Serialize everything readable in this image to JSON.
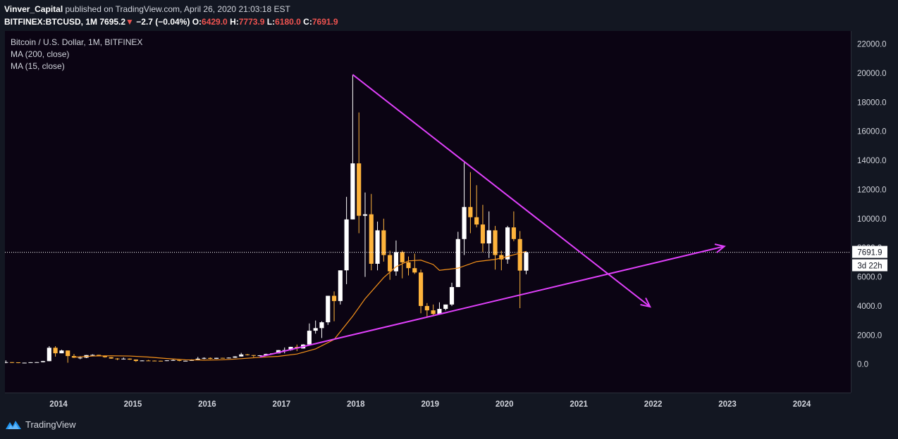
{
  "header": {
    "author": "Vinver_Capital",
    "published_text": "published on TradingView.com, April 26, 2020 21:03:18 EST",
    "symbol": "BITFINEX:BTCUSD, 1M",
    "last": "7695.2",
    "arrow": "▼",
    "change": "−2.7 (−0.04%)",
    "o_label": "O:",
    "o_value": "6429.0",
    "h_label": "H:",
    "h_value": "7773.9",
    "l_label": "L:",
    "l_value": "6180.0",
    "c_label": "C:",
    "c_value": "7691.9"
  },
  "legend": {
    "title": "Bitcoin / U.S. Dollar, 1M, BITFINEX",
    "ma200": "MA (200, close)",
    "ma15": "MA (15, close)"
  },
  "price_label": {
    "value": "7691.9",
    "countdown": "3d 22h"
  },
  "footer": {
    "brand": "TradingView"
  },
  "colors": {
    "up": "#ffffff",
    "down": "#ffb43c",
    "ma": "#f7931a",
    "trendline": "#e040fb",
    "background": "#0b0413"
  },
  "chart_data": {
    "type": "candlestick",
    "title": "Bitcoin / U.S. Dollar, 1M, BITFINEX",
    "y_ticks": [
      0,
      2000,
      4000,
      6000,
      8000,
      10000,
      12000,
      14000,
      16000,
      18000,
      20000,
      22000
    ],
    "x_ticks": [
      "2014",
      "2015",
      "2016",
      "2017",
      "2018",
      "2019",
      "2020",
      "2021",
      "2022",
      "2023",
      "2024"
    ],
    "ylim": [
      -1950,
      22900
    ],
    "candles": [
      [
        "2013-04",
        120,
        260,
        70,
        140
      ],
      [
        "2013-05",
        140,
        145,
        80,
        130
      ],
      [
        "2013-06",
        130,
        130,
        70,
        95
      ],
      [
        "2013-07",
        95,
        110,
        65,
        105
      ],
      [
        "2013-08",
        105,
        135,
        100,
        135
      ],
      [
        "2013-09",
        135,
        145,
        120,
        140
      ],
      [
        "2013-10",
        140,
        230,
        120,
        210
      ],
      [
        "2013-11",
        210,
        1240,
        200,
        1130
      ],
      [
        "2013-12",
        1130,
        1240,
        520,
        750
      ],
      [
        "2014-01",
        750,
        1000,
        750,
        940
      ],
      [
        "2014-02",
        940,
        940,
        100,
        560
      ],
      [
        "2014-03",
        560,
        700,
        420,
        450
      ],
      [
        "2014-04",
        450,
        550,
        340,
        450
      ],
      [
        "2014-05",
        450,
        630,
        420,
        625
      ],
      [
        "2014-06",
        625,
        680,
        550,
        640
      ],
      [
        "2014-07",
        640,
        650,
        565,
        580
      ],
      [
        "2014-08",
        580,
        600,
        450,
        480
      ],
      [
        "2014-09",
        480,
        490,
        370,
        390
      ],
      [
        "2014-10",
        390,
        420,
        280,
        340
      ],
      [
        "2014-11",
        340,
        460,
        320,
        380
      ],
      [
        "2014-12",
        380,
        400,
        300,
        320
      ],
      [
        "2015-01",
        320,
        320,
        160,
        220
      ],
      [
        "2015-02",
        220,
        270,
        210,
        255
      ],
      [
        "2015-03",
        255,
        300,
        235,
        245
      ],
      [
        "2015-04",
        245,
        260,
        215,
        235
      ],
      [
        "2015-05",
        235,
        245,
        225,
        230
      ],
      [
        "2015-06",
        230,
        270,
        215,
        265
      ],
      [
        "2015-07",
        265,
        320,
        260,
        285
      ],
      [
        "2015-08",
        285,
        285,
        200,
        230
      ],
      [
        "2015-09",
        230,
        245,
        225,
        235
      ],
      [
        "2015-10",
        235,
        335,
        235,
        315
      ],
      [
        "2015-11",
        315,
        500,
        300,
        380
      ],
      [
        "2015-12",
        380,
        470,
        350,
        430
      ],
      [
        "2016-01",
        430,
        465,
        350,
        370
      ],
      [
        "2016-02",
        370,
        440,
        365,
        435
      ],
      [
        "2016-03",
        435,
        440,
        395,
        415
      ],
      [
        "2016-04",
        415,
        465,
        410,
        450
      ],
      [
        "2016-05",
        450,
        550,
        435,
        530
      ],
      [
        "2016-06",
        530,
        780,
        525,
        670
      ],
      [
        "2016-07",
        670,
        700,
        600,
        625
      ],
      [
        "2016-08",
        625,
        625,
        480,
        575
      ],
      [
        "2016-09",
        575,
        620,
        570,
        610
      ],
      [
        "2016-10",
        610,
        720,
        605,
        700
      ],
      [
        "2016-11",
        700,
        760,
        680,
        745
      ],
      [
        "2016-12",
        745,
        975,
        740,
        965
      ],
      [
        "2017-01",
        965,
        1150,
        750,
        970
      ],
      [
        "2017-02",
        970,
        1200,
        930,
        1190
      ],
      [
        "2017-03",
        1190,
        1350,
        900,
        1080
      ],
      [
        "2017-04",
        1080,
        1380,
        1070,
        1350
      ],
      [
        "2017-05",
        1350,
        2800,
        1350,
        2300
      ],
      [
        "2017-06",
        2300,
        3000,
        2100,
        2480
      ],
      [
        "2017-07",
        2480,
        2950,
        1800,
        2880
      ],
      [
        "2017-08",
        2880,
        4700,
        2700,
        4700
      ],
      [
        "2017-09",
        4700,
        5000,
        2950,
        4340
      ],
      [
        "2017-10",
        4340,
        6450,
        4100,
        6450
      ],
      [
        "2017-11",
        6450,
        11500,
        5500,
        9950
      ],
      [
        "2017-12",
        9950,
        19900,
        9950,
        13800
      ],
      [
        "2018-01",
        13800,
        17300,
        9000,
        10200
      ],
      [
        "2018-02",
        10200,
        11800,
        6000,
        10300
      ],
      [
        "2018-03",
        10300,
        11700,
        6450,
        6900
      ],
      [
        "2018-04",
        6900,
        9800,
        6450,
        9200
      ],
      [
        "2018-05",
        9200,
        10000,
        7050,
        7500
      ],
      [
        "2018-06",
        7500,
        7800,
        5800,
        6380
      ],
      [
        "2018-07",
        6380,
        8500,
        6080,
        7700
      ],
      [
        "2018-08",
        7700,
        7800,
        5900,
        7000
      ],
      [
        "2018-09",
        7000,
        7400,
        6100,
        6600
      ],
      [
        "2018-10",
        6600,
        7600,
        6200,
        6300
      ],
      [
        "2018-11",
        6300,
        6500,
        3500,
        4000
      ],
      [
        "2018-12",
        4000,
        4200,
        3200,
        3700
      ],
      [
        "2019-01",
        3700,
        4100,
        3350,
        3450
      ],
      [
        "2019-02",
        3450,
        4250,
        3400,
        3800
      ],
      [
        "2019-03",
        3800,
        4100,
        3700,
        4100
      ],
      [
        "2019-04",
        4100,
        5600,
        4000,
        5300
      ],
      [
        "2019-05",
        5300,
        9100,
        5300,
        8600
      ],
      [
        "2019-06",
        8600,
        13850,
        7500,
        10800
      ],
      [
        "2019-07",
        10800,
        13200,
        9000,
        10100
      ],
      [
        "2019-08",
        10100,
        12300,
        9400,
        9600
      ],
      [
        "2019-09",
        9600,
        10950,
        7700,
        8300
      ],
      [
        "2019-10",
        8300,
        10500,
        7300,
        9200
      ],
      [
        "2019-11",
        9200,
        9500,
        6500,
        7500
      ],
      [
        "2019-12",
        7500,
        7800,
        6450,
        7200
      ],
      [
        "2020-01",
        7200,
        9500,
        6900,
        9400
      ],
      [
        "2020-02",
        9400,
        10500,
        8450,
        8600
      ],
      [
        "2020-03",
        8600,
        9150,
        3850,
        6430
      ],
      [
        "2020-04",
        6429,
        7773.9,
        6180,
        7691.9
      ]
    ],
    "ma15": [
      [
        "2014-03",
        480
      ],
      [
        "2014-06",
        560
      ],
      [
        "2014-09",
        580
      ],
      [
        "2014-12",
        560
      ],
      [
        "2015-03",
        490
      ],
      [
        "2015-06",
        390
      ],
      [
        "2015-09",
        300
      ],
      [
        "2015-12",
        280
      ],
      [
        "2016-03",
        300
      ],
      [
        "2016-06",
        380
      ],
      [
        "2016-09",
        470
      ],
      [
        "2016-12",
        540
      ],
      [
        "2017-03",
        700
      ],
      [
        "2017-06",
        1050
      ],
      [
        "2017-09",
        1700
      ],
      [
        "2017-12",
        3300
      ],
      [
        "2018-02",
        4500
      ],
      [
        "2018-05",
        5950
      ],
      [
        "2018-07",
        6700
      ],
      [
        "2018-09",
        7100
      ],
      [
        "2018-11",
        7150
      ],
      [
        "2019-01",
        6850
      ],
      [
        "2019-02",
        6450
      ],
      [
        "2019-05",
        6600
      ],
      [
        "2019-08",
        7050
      ],
      [
        "2019-11",
        7200
      ],
      [
        "2020-01",
        7400
      ],
      [
        "2020-04",
        7750
      ]
    ],
    "trendlines": [
      {
        "from": [
          "2017-12",
          19900
        ],
        "to": [
          "2021-12",
          3950
        ],
        "arrow": true
      },
      {
        "from": [
          "2016-09",
          500
        ],
        "to": [
          "2022-12",
          8100
        ],
        "arrow": true
      }
    ],
    "current_price": 7691.9
  }
}
